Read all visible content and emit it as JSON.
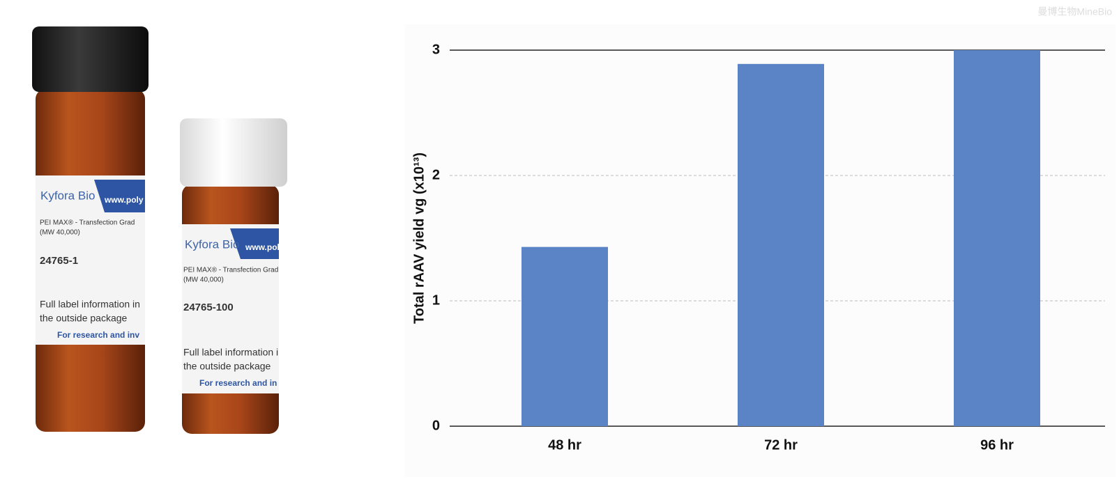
{
  "watermark": "曼博生物MineBio",
  "vials": [
    {
      "brand": "Kyfora Bio",
      "url": "www.poly",
      "product": "PEI MAX® - Transfection Grad",
      "mw": "(MW 40,000)",
      "catalog": "24765-1",
      "note_1": "Full label information in",
      "note_2": "the outside package",
      "footer": "For research and inv"
    },
    {
      "brand": "Kyfora Bio",
      "url": "www.poly",
      "product": "PEI MAX® - Transfection Grad",
      "mw": "(MW 40,000)",
      "catalog": "24765-100",
      "note_1": "Full label information i",
      "note_2": "the outside package",
      "footer": "For research and in"
    }
  ],
  "chart_data": {
    "type": "bar",
    "ylabel": "Total rAAV yield vg (x10¹³)",
    "categories": [
      "48 hr",
      "72 hr",
      "96 hr"
    ],
    "values": [
      1.43,
      2.89,
      3.0
    ],
    "color": "#5b84c7",
    "ylim": [
      0,
      3
    ],
    "yticks": [
      0,
      1,
      2,
      3
    ],
    "grid": true
  }
}
